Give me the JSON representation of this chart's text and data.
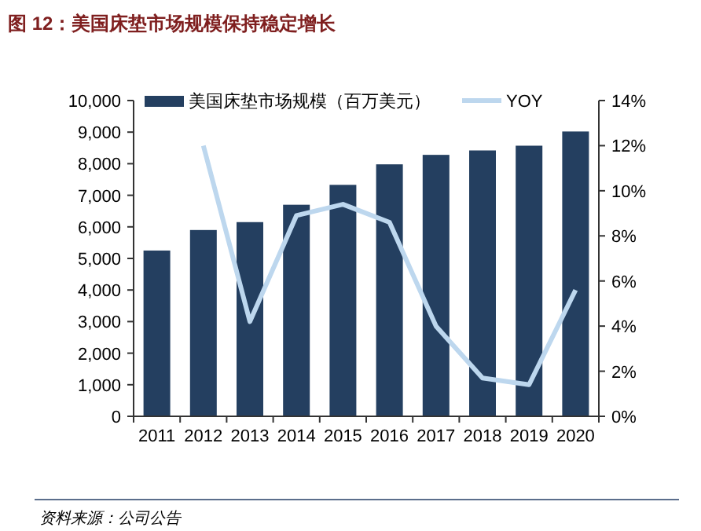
{
  "chart_data": {
    "type": "bar",
    "title": "图 12：美国床垫市场规模保持稳定增长",
    "categories": [
      "2011",
      "2012",
      "2013",
      "2014",
      "2015",
      "2016",
      "2017",
      "2018",
      "2019",
      "2020"
    ],
    "series": [
      {
        "name": "美国床垫市场规模（百万美元）",
        "color": "#243f60",
        "values": [
          5250,
          5900,
          6150,
          6700,
          7330,
          7980,
          8280,
          8420,
          8570,
          9020
        ]
      },
      {
        "name": "YOY",
        "type": "line",
        "axis": "y2",
        "color": "#bdd7ee",
        "values": [
          null,
          12.0,
          4.2,
          8.9,
          9.4,
          8.6,
          4.0,
          1.7,
          1.4,
          5.6
        ]
      }
    ],
    "ylim": [
      0,
      10000
    ],
    "yticks": [
      {
        "value": 0,
        "label": "0"
      },
      {
        "value": 1000,
        "label": "1,000"
      },
      {
        "value": 2000,
        "label": "2,000"
      },
      {
        "value": 3000,
        "label": "3,000"
      },
      {
        "value": 4000,
        "label": "4,000"
      },
      {
        "value": 5000,
        "label": "5,000"
      },
      {
        "value": 6000,
        "label": "6,000"
      },
      {
        "value": 7000,
        "label": "7,000"
      },
      {
        "value": 8000,
        "label": "8,000"
      },
      {
        "value": 9000,
        "label": "9,000"
      },
      {
        "value": 10000,
        "label": "10,000"
      }
    ],
    "y2lim": [
      0,
      14
    ],
    "y2ticks": [
      {
        "value": 0,
        "label": "0%"
      },
      {
        "value": 2,
        "label": "2%"
      },
      {
        "value": 4,
        "label": "4%"
      },
      {
        "value": 6,
        "label": "6%"
      },
      {
        "value": 8,
        "label": "8%"
      },
      {
        "value": 10,
        "label": "10%"
      },
      {
        "value": 12,
        "label": "12%"
      },
      {
        "value": 14,
        "label": "14%"
      }
    ],
    "grid": false,
    "legend": "top",
    "marker": "none",
    "line_style": "solid",
    "annotations": [
      "资料来源：公司公告"
    ]
  }
}
